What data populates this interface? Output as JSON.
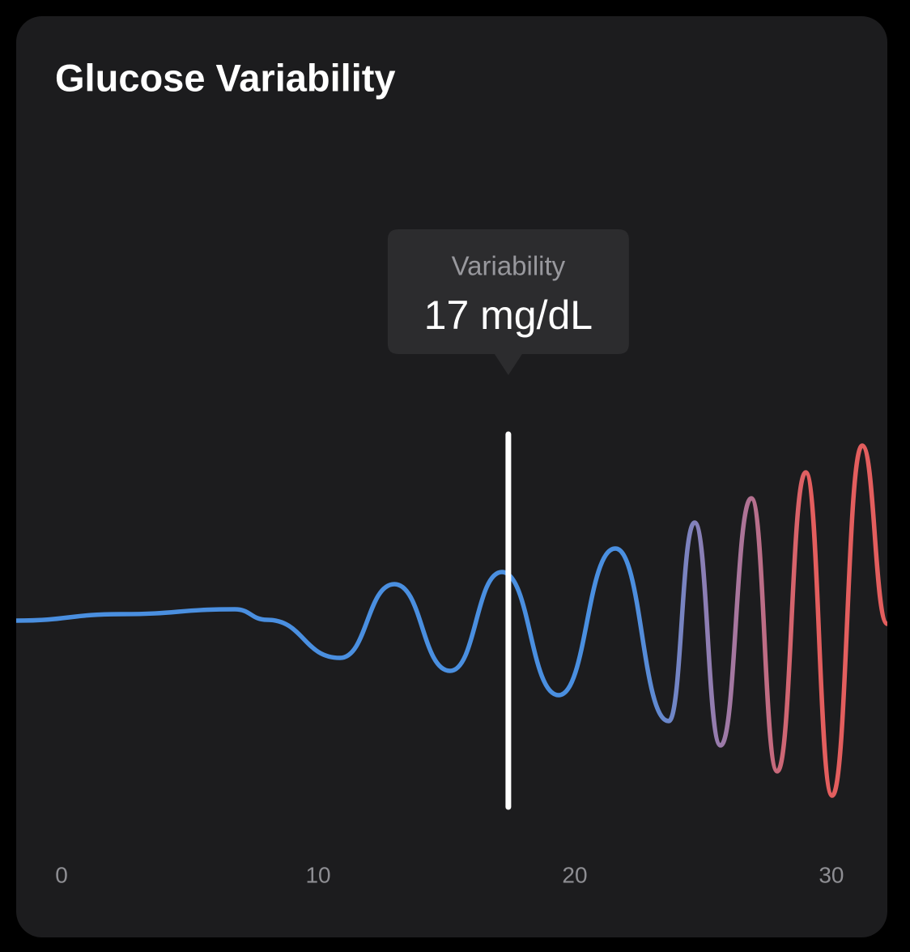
{
  "chart_data": {
    "type": "line",
    "title": "Glucose Variability",
    "x": [
      -1.77,
      2.33,
      6.75,
      8.01,
      10.85,
      12.97,
      15.14,
      17.16,
      19.37,
      21.58,
      23.66,
      24.67,
      25.68,
      26.88,
      27.89,
      29.0,
      30.03,
      31.2,
      32.18
    ],
    "values": [
      46.8,
      48.4,
      49.6,
      47,
      37.6,
      55.8,
      34.4,
      58.8,
      28.4,
      64.6,
      22,
      71,
      16,
      77,
      9.6,
      83.4,
      3.6,
      90,
      46
    ],
    "colors": [
      "#4a8fe0",
      "#9a7bab",
      "#e35e5e"
    ],
    "xlim": [
      -1.77,
      32.18
    ],
    "ylim": [
      0,
      100
    ],
    "xticks": [
      0,
      10,
      20,
      30
    ],
    "cursor_x": 17.41,
    "tooltip": {
      "label": "Variability",
      "value": "17 mg/dL"
    }
  }
}
